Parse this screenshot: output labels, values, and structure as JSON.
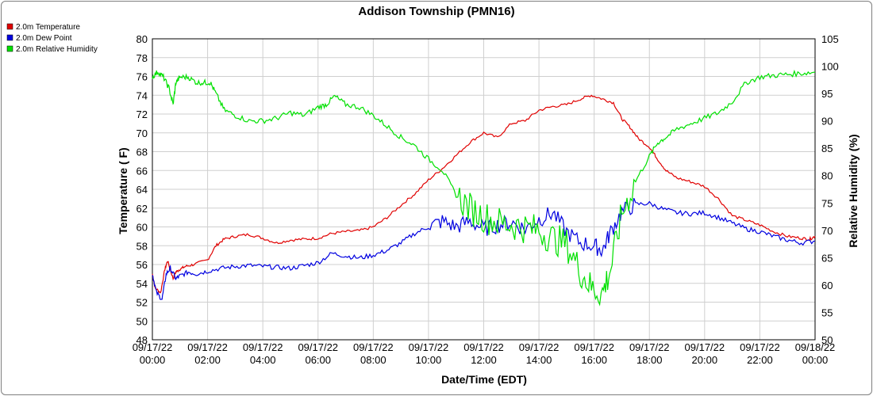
{
  "chart_data": {
    "type": "line",
    "title": "Addison Township (PMN16)",
    "xlabel": "Date/Time (EDT)",
    "ylabel": "Temperature ( F)",
    "y2label": "Relative Humidity (%)",
    "xlim": [
      0,
      24
    ],
    "ylim": [
      48,
      80
    ],
    "y2lim": [
      50,
      105
    ],
    "grid": true,
    "legend_placement": "top-left",
    "x_ticks": [
      {
        "date": "09/17/22",
        "time": "00:00",
        "hour": 0
      },
      {
        "date": "09/17/22",
        "time": "02:00",
        "hour": 2
      },
      {
        "date": "09/17/22",
        "time": "04:00",
        "hour": 4
      },
      {
        "date": "09/17/22",
        "time": "06:00",
        "hour": 6
      },
      {
        "date": "09/17/22",
        "time": "08:00",
        "hour": 8
      },
      {
        "date": "09/17/22",
        "time": "10:00",
        "hour": 10
      },
      {
        "date": "09/17/22",
        "time": "12:00",
        "hour": 12
      },
      {
        "date": "09/17/22",
        "time": "14:00",
        "hour": 14
      },
      {
        "date": "09/17/22",
        "time": "16:00",
        "hour": 16
      },
      {
        "date": "09/17/22",
        "time": "18:00",
        "hour": 18
      },
      {
        "date": "09/17/22",
        "time": "20:00",
        "hour": 20
      },
      {
        "date": "09/17/22",
        "time": "22:00",
        "hour": 22
      },
      {
        "date": "09/18/22",
        "time": "00:00",
        "hour": 24
      }
    ],
    "y_ticks": [
      48,
      50,
      52,
      54,
      56,
      58,
      60,
      62,
      64,
      66,
      68,
      70,
      72,
      74,
      76,
      78,
      80
    ],
    "y2_ticks": [
      50,
      55,
      60,
      65,
      70,
      75,
      80,
      85,
      90,
      95,
      100,
      105
    ],
    "series": [
      {
        "name": "2.0m Temperature",
        "color": "#e00000",
        "axis": "left",
        "x": [
          0,
          0.1,
          0.3,
          0.45,
          0.55,
          0.75,
          0.85,
          1.0,
          1.2,
          1.5,
          2.0,
          2.3,
          2.6,
          3.0,
          3.5,
          4.0,
          4.5,
          5.0,
          5.5,
          6.0,
          6.5,
          7.0,
          7.5,
          8.0,
          8.5,
          9.0,
          9.5,
          10.0,
          10.5,
          11.0,
          11.5,
          12.0,
          12.5,
          13.0,
          13.5,
          14.0,
          14.5,
          15.0,
          15.5,
          15.9,
          16.3,
          16.7,
          17.0,
          17.3,
          17.6,
          18.0,
          18.3,
          18.6,
          19.0,
          19.5,
          20.0,
          20.5,
          21.0,
          21.5,
          22.0,
          22.5,
          23.0,
          23.5,
          23.8,
          24.0
        ],
        "y": [
          55.0,
          53.5,
          53.0,
          55.5,
          56.4,
          54.5,
          55.2,
          55.5,
          55.8,
          56.0,
          56.5,
          58.0,
          58.7,
          59.0,
          59.2,
          58.8,
          58.3,
          58.6,
          58.7,
          58.8,
          59.3,
          59.5,
          59.6,
          60.0,
          61.0,
          62.3,
          63.5,
          65.0,
          66.2,
          67.6,
          69.0,
          70.0,
          69.5,
          71.0,
          71.3,
          72.4,
          72.8,
          73.0,
          73.6,
          74.0,
          73.6,
          73.2,
          71.5,
          70.6,
          69.4,
          68.5,
          67.2,
          66.0,
          65.2,
          64.8,
          64.3,
          63.0,
          61.2,
          60.7,
          60.2,
          59.5,
          59.0,
          58.8,
          58.7,
          59.0
        ]
      },
      {
        "name": "2.0m Dew Point",
        "color": "#0000e0",
        "axis": "left",
        "x": [
          0,
          0.15,
          0.35,
          0.5,
          0.65,
          0.85,
          1.0,
          1.3,
          1.6,
          2.0,
          2.5,
          3.0,
          3.5,
          4.0,
          4.5,
          5.0,
          5.5,
          6.0,
          6.5,
          7.0,
          7.5,
          8.0,
          8.5,
          9.0,
          9.5,
          10.0,
          10.5,
          11.0,
          11.5,
          12.0,
          12.5,
          13.0,
          13.5,
          14.0,
          14.5,
          15.0,
          15.5,
          16.0,
          16.3,
          16.6,
          17.0,
          17.5,
          18.0,
          18.5,
          19.0,
          19.5,
          20.0,
          20.5,
          21.0,
          21.5,
          22.0,
          22.5,
          23.0,
          23.5,
          24.0
        ],
        "y": [
          55.0,
          53.0,
          52.3,
          55.0,
          55.6,
          54.5,
          54.8,
          55.2,
          55.0,
          55.3,
          55.6,
          55.8,
          55.9,
          55.8,
          55.7,
          55.6,
          55.9,
          56.2,
          57.2,
          56.9,
          56.7,
          57.0,
          57.5,
          58.3,
          59.3,
          60.0,
          60.6,
          60.0,
          60.6,
          59.8,
          60.2,
          60.5,
          59.8,
          60.8,
          61.5,
          59.5,
          58.3,
          58.0,
          57.5,
          59.5,
          61.6,
          62.4,
          62.5,
          61.9,
          61.5,
          61.4,
          61.5,
          61.0,
          60.4,
          59.8,
          59.5,
          59.0,
          58.6,
          58.3,
          58.5
        ]
      },
      {
        "name": "2.0m Relative Humidity",
        "color": "#00e000",
        "axis": "right",
        "x": [
          0,
          0.2,
          0.4,
          0.6,
          0.75,
          0.85,
          1.0,
          1.3,
          1.6,
          1.9,
          2.1,
          2.3,
          2.6,
          3.0,
          3.5,
          4.0,
          4.5,
          5.0,
          5.5,
          6.0,
          6.3,
          6.6,
          7.0,
          7.5,
          8.0,
          8.5,
          9.0,
          9.5,
          10.0,
          10.5,
          11.0,
          11.5,
          12.0,
          12.5,
          13.0,
          13.5,
          14.0,
          14.5,
          15.0,
          15.5,
          15.9,
          16.3,
          16.6,
          17.0,
          17.5,
          18.0,
          18.3,
          18.6,
          19.0,
          19.5,
          20.0,
          20.5,
          21.0,
          21.5,
          22.0,
          22.5,
          23.0,
          23.5,
          24.0
        ],
        "y": [
          98,
          99,
          98,
          96,
          93,
          97,
          98,
          98,
          97,
          97,
          97,
          95,
          92,
          91,
          90,
          90,
          90.5,
          91.5,
          91.0,
          92.5,
          93.0,
          94.5,
          93.0,
          92.5,
          91.0,
          89.0,
          87.0,
          85.5,
          83.0,
          81.0,
          76.5,
          74.0,
          72.5,
          71.5,
          71.0,
          70.5,
          70.0,
          68.5,
          67.5,
          62.5,
          59.5,
          58.5,
          63.0,
          73.0,
          79.0,
          83.5,
          86.0,
          87.0,
          88.5,
          89.5,
          90.5,
          91.5,
          93.5,
          97.0,
          98.0,
          98.3,
          98.5,
          98.7,
          98.9
        ]
      }
    ]
  }
}
